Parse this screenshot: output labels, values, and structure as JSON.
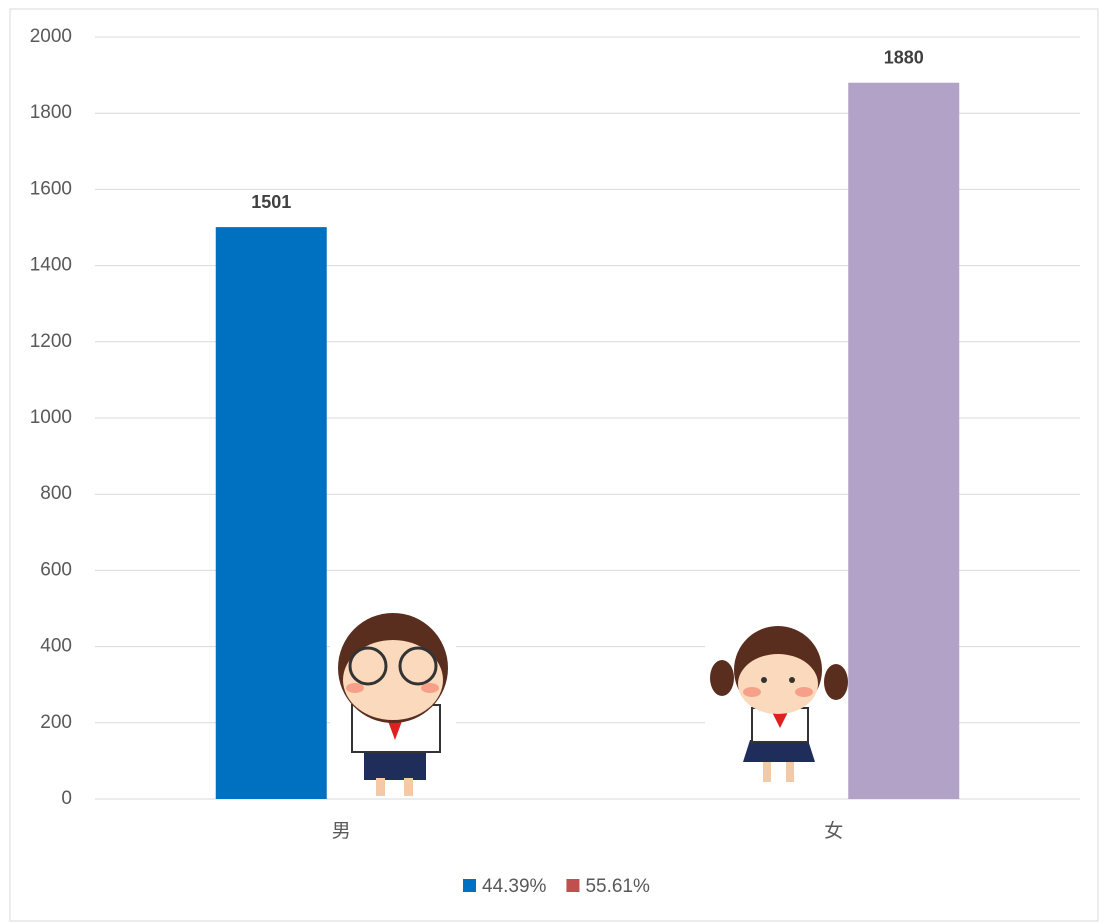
{
  "chart_data": {
    "type": "bar",
    "categories": [
      "男",
      "女"
    ],
    "series": [
      {
        "name": "44.39%",
        "color": "#0070c0",
        "bar_color": "#0070c0",
        "values": [
          1501,
          null
        ]
      },
      {
        "name": "55.61%",
        "color": "#c0504d",
        "bar_color": "#b3a2c7",
        "values": [
          null,
          1880
        ]
      }
    ],
    "ylim": [
      0,
      2000
    ],
    "yticks": [
      0,
      200,
      400,
      600,
      800,
      1000,
      1200,
      1400,
      1600,
      1800,
      2000
    ],
    "grid": true,
    "legend": "bottom"
  }
}
